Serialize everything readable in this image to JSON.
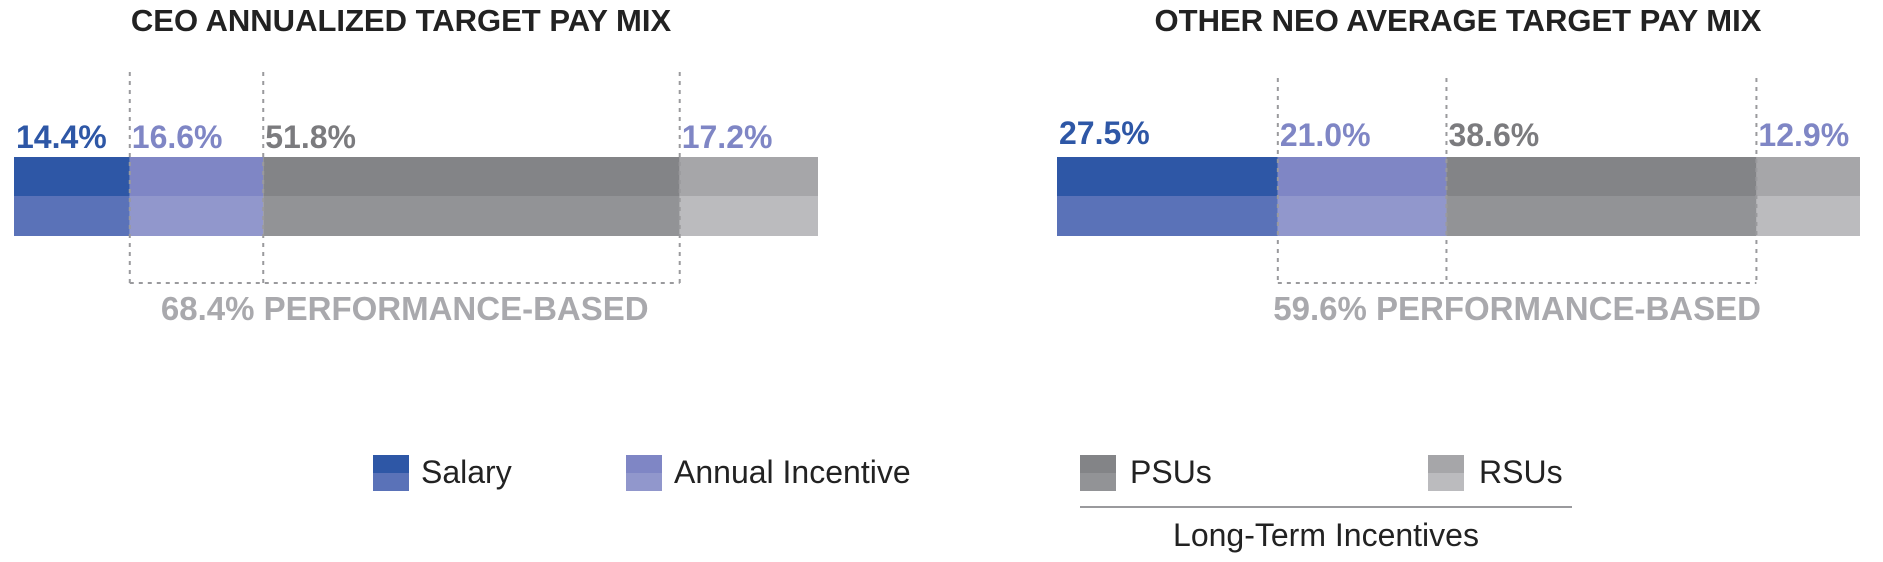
{
  "chart_data": [
    {
      "type": "bar",
      "orientation": "horizontal-stacked",
      "title": "CEO ANNUALIZED TARGET PAY MIX",
      "categories": [
        "Salary",
        "Annual Incentive",
        "PSUs",
        "RSUs"
      ],
      "values": [
        14.4,
        16.6,
        51.8,
        17.2
      ],
      "labels": [
        "14.4%",
        "16.6%",
        "51.8%",
        "17.2%"
      ],
      "performance_based_label": "68.4% PERFORMANCE-BASED"
    },
    {
      "type": "bar",
      "orientation": "horizontal-stacked",
      "title": "OTHER NEO AVERAGE TARGET PAY MIX",
      "categories": [
        "Salary",
        "Annual Incentive",
        "PSUs",
        "RSUs"
      ],
      "values": [
        27.5,
        21.0,
        38.6,
        12.9
      ],
      "labels": [
        "27.5%",
        "21.0%",
        "38.6%",
        "12.9%"
      ],
      "performance_based_label": "59.6% PERFORMANCE-BASED"
    }
  ],
  "colors": {
    "salary_top": "#2e57a6",
    "salary_bottom": "#5a72b8",
    "annual_top": "#7f86c5",
    "annual_bottom": "#9197cc",
    "psu_top": "#838487",
    "psu_bottom": "#929396",
    "rsu_top": "#a6a6a9",
    "rsu_bottom": "#bbbbbe",
    "salary_text": "#2e57a6",
    "annual_text": "#7f86c5",
    "psu_text": "#7b7b7e",
    "rsu_text": "#7f86c5",
    "perf_text": "#a9a9ad"
  },
  "legend": {
    "items": [
      {
        "label": "Salary",
        "key": "salary"
      },
      {
        "label": "Annual Incentive",
        "key": "annual"
      },
      {
        "label": "PSUs",
        "key": "psu"
      },
      {
        "label": "RSUs",
        "key": "rsu"
      }
    ],
    "group_label": "Long-Term Incentives"
  }
}
